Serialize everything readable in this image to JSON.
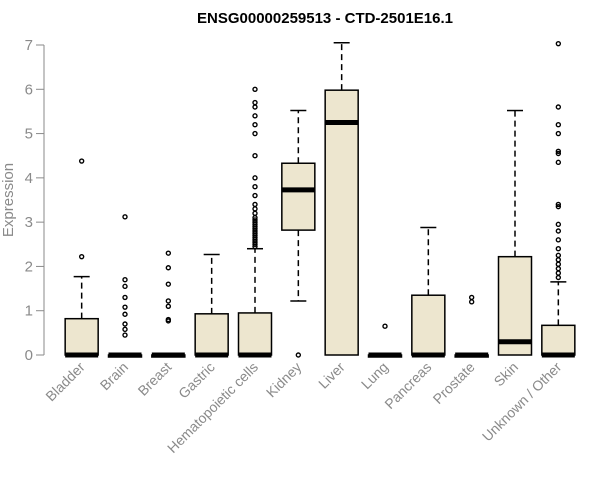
{
  "chart_data": {
    "type": "box",
    "title": "ENSG00000259513 - CTD-2501E16.1",
    "ylabel": "Expression",
    "xlabel": "",
    "ylim": [
      0,
      7
    ],
    "yticks": [
      0,
      1,
      2,
      3,
      4,
      5,
      6,
      7
    ],
    "box_fill": "#ede6cf",
    "categories": [
      "Bladder",
      "Brain",
      "Breast",
      "Gastric",
      "Hematopoietic cells",
      "Kidney",
      "Liver",
      "Lung",
      "Pancreas",
      "Prostate",
      "Skin",
      "Unknown / Other"
    ],
    "boxes": [
      {
        "q1": 0,
        "median": 0,
        "q3": 0.82,
        "whisker_low": 0,
        "whisker_high": 1.77,
        "outliers": [
          2.22,
          4.38
        ]
      },
      {
        "q1": 0,
        "median": 0,
        "q3": 0,
        "whisker_low": 0,
        "whisker_high": 0,
        "outliers": [
          0.45,
          0.58,
          0.7,
          0.92,
          1.08,
          1.3,
          1.55,
          1.7,
          3.12
        ]
      },
      {
        "q1": 0,
        "median": 0,
        "q3": 0,
        "whisker_low": 0,
        "whisker_high": 0,
        "outliers": [
          0.77,
          0.8,
          1.1,
          1.22,
          1.6,
          1.97,
          2.3
        ]
      },
      {
        "q1": 0,
        "median": 0,
        "q3": 0.93,
        "whisker_low": 0,
        "whisker_high": 2.27,
        "outliers": []
      },
      {
        "q1": 0,
        "median": 0,
        "q3": 0.95,
        "whisker_low": 0,
        "whisker_high": 2.4,
        "outliers": [
          2.45,
          2.5,
          2.55,
          2.6,
          2.65,
          2.7,
          2.75,
          2.8,
          2.85,
          2.9,
          2.95,
          3.0,
          3.05,
          3.1,
          3.2,
          3.3,
          3.4,
          3.6,
          3.8,
          4.0,
          4.5,
          5.0,
          5.2,
          5.4,
          5.6,
          5.7,
          6.0
        ]
      },
      {
        "q1": 2.82,
        "median": 3.73,
        "q3": 4.33,
        "whisker_low": 1.22,
        "whisker_high": 5.52,
        "outliers": [
          0
        ]
      },
      {
        "q1": 0,
        "median": 5.25,
        "q3": 5.98,
        "whisker_low": 0,
        "whisker_high": 7.05,
        "outliers": []
      },
      {
        "q1": 0,
        "median": 0,
        "q3": 0,
        "whisker_low": 0,
        "whisker_high": 0,
        "outliers": [
          0.65
        ]
      },
      {
        "q1": 0,
        "median": 0,
        "q3": 1.35,
        "whisker_low": 0,
        "whisker_high": 2.88,
        "outliers": []
      },
      {
        "q1": 0,
        "median": 0,
        "q3": 0,
        "whisker_low": 0,
        "whisker_high": 0,
        "outliers": [
          1.2,
          1.3
        ]
      },
      {
        "q1": 0,
        "median": 0.3,
        "q3": 2.22,
        "whisker_low": 0,
        "whisker_high": 5.52,
        "outliers": []
      },
      {
        "q1": 0,
        "median": 0,
        "q3": 0.67,
        "whisker_low": 0,
        "whisker_high": 1.65,
        "outliers": [
          1.75,
          1.85,
          1.95,
          2.05,
          2.15,
          2.25,
          2.4,
          2.6,
          2.8,
          2.95,
          3.35,
          3.4,
          4.35,
          4.55,
          4.6,
          5.0,
          5.2,
          5.6,
          7.03
        ]
      }
    ]
  }
}
